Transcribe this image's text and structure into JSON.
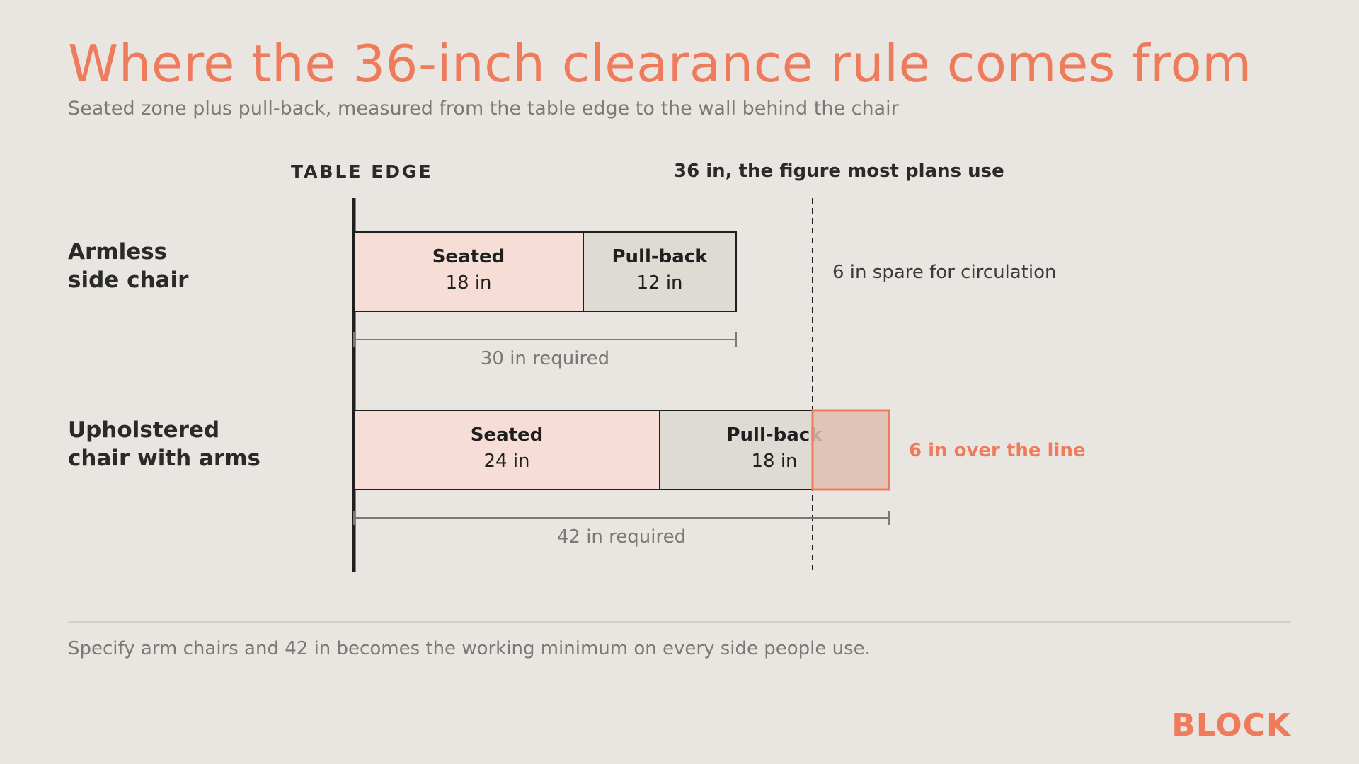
{
  "header": {
    "title": "Where the 36-inch clearance rule comes from",
    "subtitle": "Seated zone plus pull-back, measured from the table edge to the wall behind the chair"
  },
  "chart_data": {
    "type": "bar",
    "orientation": "horizontal-stacked",
    "axis_label": "TABLE EDGE",
    "unit": "in",
    "reference_line": {
      "value": 36,
      "label": "36 in, the figure most plans use"
    },
    "rows": [
      {
        "label_lines": [
          "Armless",
          "side chair"
        ],
        "segments": [
          {
            "name": "Seated",
            "value": 18,
            "value_label": "18 in"
          },
          {
            "name": "Pull-back",
            "value": 12,
            "value_label": "12 in"
          }
        ],
        "total": 30,
        "total_label": "30 in required",
        "note": "6 in spare for circulation",
        "over": false
      },
      {
        "label_lines": [
          "Upholstered",
          "chair with arms"
        ],
        "segments": [
          {
            "name": "Seated",
            "value": 24,
            "value_label": "24 in"
          },
          {
            "name": "Pull-back",
            "value": 18,
            "value_label": "18 in"
          }
        ],
        "total": 42,
        "total_label": "42 in required",
        "note": "6 in over the line",
        "over": true
      }
    ],
    "colors": {
      "seated": "#f6ddd5",
      "pullback": "#dedad4",
      "overflow": "#e2bfb3",
      "accent": "#ee7b5c",
      "ink": "#1f1f1f",
      "muted": "#7b7975"
    }
  },
  "footer": {
    "note": "Specify arm chairs and 42 in becomes the working minimum on every side people use.",
    "brand": "BLOCK"
  }
}
